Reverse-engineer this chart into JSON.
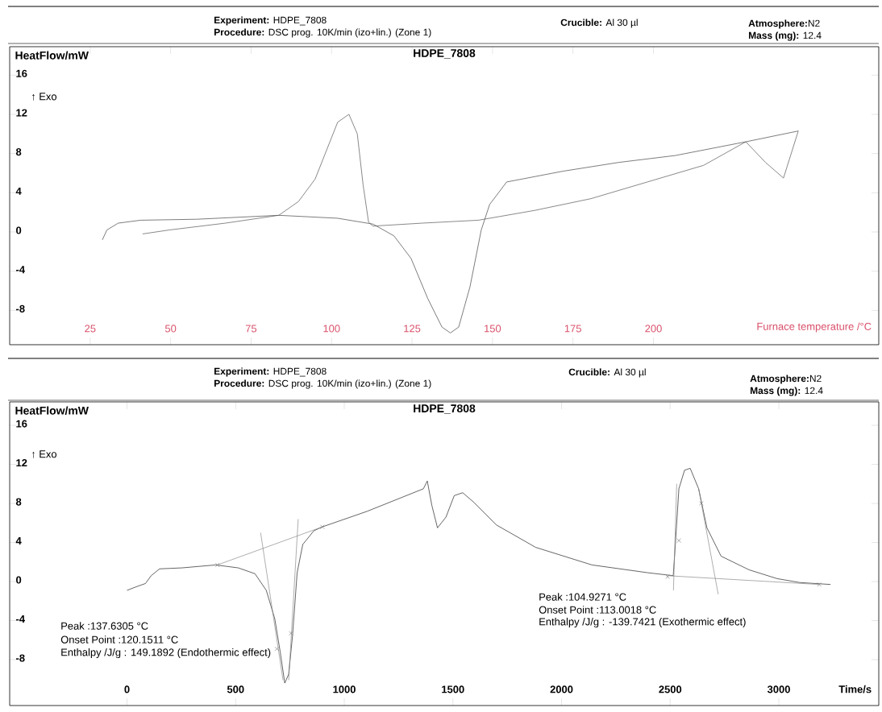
{
  "chart_data": [
    {
      "type": "line",
      "title": "HDPE_7808",
      "xlabel": "Furnace temperature /°C",
      "ylabel": "HeatFlow/mW",
      "xlim": [
        0,
        270
      ],
      "ylim": [
        -11.5,
        18.9
      ],
      "xticks": [
        25,
        50,
        75,
        100,
        125,
        150,
        175,
        200
      ],
      "yticks": [
        -8,
        -4,
        0,
        4,
        8,
        12,
        16
      ],
      "annotations": [
        "**Experiment:** HDPE_7808",
        "**Procedure:**  DSC prog. 10K/min (izo+lin.) (Zone 1)",
        "**Crucible:** Al 30 µl",
        "**Atmosphere:**N2",
        "**Mass (mg):**  12.4",
        "↑  Exo"
      ],
      "series": [
        {
          "color": "#444444",
          "x": [
            28.8,
            30.2,
            33.7,
            40.7,
            58.2,
            83.6,
            101.9,
            112.9,
            119.4,
            124.7,
            129.9,
            134.3,
            136.9,
            139.5,
            143.0,
            146.5,
            149.1,
            154.4,
            171.9,
            189.3,
            206.8,
            228.7,
            245.0
          ],
          "values": [
            -0.8,
            0.2,
            0.9,
            1.2,
            1.3,
            1.7,
            1.4,
            0.8,
            -0.4,
            -2.7,
            -6.8,
            -9.7,
            -10.3,
            -9.7,
            -5.6,
            0.2,
            2.8,
            5.1,
            6.2,
            7.1,
            7.8,
            9.2,
            10.3
          ]
        },
        {
          "color": "#555555",
          "x": [
            245.0,
            240.4,
            234.8,
            228.7,
            215.6,
            198.1,
            180.6,
            163.1,
            145.6,
            128.1,
            112.9,
            111.5,
            109.8,
            108.0,
            105.4,
            101.9,
            98.4,
            94.9,
            89.7,
            83.6,
            67.0,
            49.5,
            41.3
          ],
          "values": [
            10.3,
            5.5,
            7.1,
            9.2,
            6.8,
            5.1,
            3.4,
            2.2,
            1.2,
            0.9,
            0.6,
            1.0,
            4.8,
            10.0,
            12.0,
            11.2,
            8.3,
            5.4,
            3.1,
            1.7,
            0.9,
            0.2,
            -0.2
          ]
        }
      ]
    },
    {
      "type": "line",
      "title": "HDPE_7808",
      "xlabel": "Time/s",
      "ylabel": "HeatFlow/mW",
      "xlim": [
        -540,
        3460
      ],
      "ylim": [
        -12.7,
        18.4
      ],
      "xticks": [
        0,
        500,
        1000,
        1500,
        2000,
        2500,
        3000
      ],
      "yticks": [
        -8,
        -4,
        0,
        4,
        8,
        12,
        16
      ],
      "annotations": [
        "**Experiment:** HDPE_7808",
        "**Procedure:**  DSC prog. 10K/min (izo+lin.) (Zone 1)",
        "**Crucible:** Al 30 µl",
        "**Atmosphere:**N2",
        "**Mass (mg):**  12.4",
        "↑  Exo",
        "Peak :137.6305 °C",
        "Onset Point :120.1511 °C",
        "Enthalpy /J/g : 149.1892 (Endothermic effect)",
        "Peak :104.9271 °C",
        "Onset Point :113.0018 °C",
        "Enthalpy /J/g : -139.7421 (Exothermic effect)"
      ],
      "series": [
        {
          "color": "#222222",
          "x": [
            0,
            47,
            85,
            111,
            150,
            253,
            408,
            512,
            589,
            641,
            680,
            705,
            726,
            744,
            762,
            783,
            809,
            860,
            899,
            1106,
            1364,
            1382,
            1403,
            1429,
            1468,
            1506,
            1545,
            1597,
            1700,
            1881,
            2140,
            2398,
            2514,
            2522,
            2540,
            2566,
            2592,
            2631,
            2669,
            2734,
            2863,
            2992,
            3096,
            3238
          ],
          "values": [
            -0.9,
            -0.5,
            -0.2,
            0.6,
            1.3,
            1.4,
            1.7,
            1.4,
            0.8,
            -0.9,
            -3.8,
            -7.2,
            -10.4,
            -9.5,
            -5.5,
            0.9,
            3.8,
            5.2,
            5.6,
            7.2,
            9.5,
            10.3,
            7.8,
            5.5,
            6.6,
            8.8,
            9.1,
            8.1,
            5.8,
            3.5,
            1.7,
            0.9,
            0.6,
            3.2,
            9.5,
            11.4,
            11.6,
            9.5,
            5.5,
            2.6,
            1.2,
            0.3,
            -0.1,
            -0.3
          ]
        },
        {
          "type": "line",
          "color": "#8a8a8a",
          "x": [
            416,
            899
          ],
          "values": [
            1.7,
            5.6
          ]
        },
        {
          "type": "line",
          "color": "#8a8a8a",
          "x": [
            615,
            718
          ],
          "values": [
            5.0,
            -10.1
          ]
        },
        {
          "type": "line",
          "color": "#8a8a8a",
          "x": [
            788,
            744
          ],
          "values": [
            6.4,
            -10.1
          ]
        },
        {
          "type": "line",
          "color": "#8a8a8a",
          "x": [
            2488,
            3186
          ],
          "values": [
            0.6,
            -0.3
          ]
        },
        {
          "type": "line",
          "color": "#8a8a8a",
          "x": [
            2515,
            2530
          ],
          "values": [
            -0.9,
            10.0
          ]
        },
        {
          "type": "line",
          "color": "#8a8a8a",
          "x": [
            2631,
            2721
          ],
          "values": [
            9.5,
            -1.3
          ]
        },
        {
          "type": "scatter",
          "marker": "cross",
          "color": "#777777",
          "x": [
            416,
            899,
            690,
            755,
            2488,
            2540,
            2643,
            3186
          ],
          "values": [
            1.7,
            5.6,
            -6.9,
            -5.3,
            0.5,
            4.2,
            8.0,
            -0.3
          ]
        }
      ]
    }
  ]
}
